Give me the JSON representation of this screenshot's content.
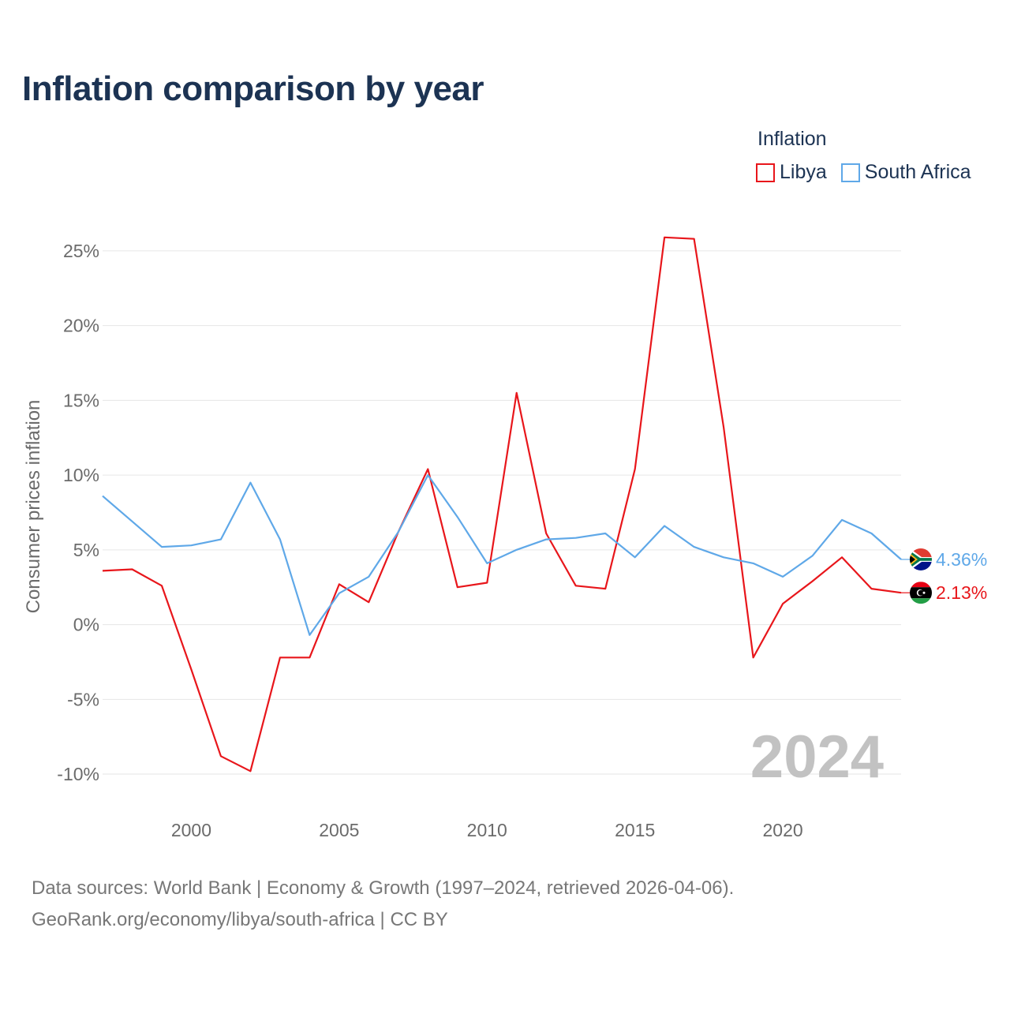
{
  "title": "Inflation comparison by year",
  "legend": {
    "title": "Inflation",
    "items": [
      {
        "label": "Libya",
        "color": "#e8161b"
      },
      {
        "label": "South Africa",
        "color": "#5fa8e8"
      }
    ]
  },
  "footer": {
    "line1": "Data sources: World Bank | Economy & Growth (1997–2024, retrieved 2026-04-06).",
    "line2": "GeoRank.org/economy/libya/south-africa | CC BY"
  },
  "chart_data": {
    "type": "line",
    "title": "Inflation comparison by year",
    "xlabel": "",
    "ylabel": "Consumer prices inflation",
    "xlim": [
      1997,
      2024
    ],
    "ylim": [
      -11,
      27
    ],
    "x_ticks": [
      2000,
      2005,
      2010,
      2015,
      2020
    ],
    "y_ticks": [
      25,
      20,
      15,
      10,
      5,
      0,
      -5,
      -10
    ],
    "y_tick_labels": [
      "25%",
      "20%",
      "15%",
      "10%",
      "5%",
      "0%",
      "-5%",
      "-10%"
    ],
    "year_watermark": "2024",
    "x": [
      1997,
      1998,
      1999,
      2000,
      2001,
      2002,
      2003,
      2004,
      2005,
      2006,
      2007,
      2008,
      2009,
      2010,
      2011,
      2012,
      2013,
      2014,
      2015,
      2016,
      2017,
      2018,
      2019,
      2020,
      2021,
      2022,
      2023,
      2024
    ],
    "series": [
      {
        "name": "Libya",
        "color": "#e8161b",
        "values": [
          3.6,
          3.7,
          2.6,
          -3.0,
          -8.8,
          -9.8,
          -2.2,
          -2.2,
          2.7,
          1.5,
          6.2,
          10.4,
          2.5,
          2.8,
          15.5,
          6.1,
          2.6,
          2.4,
          10.4,
          25.9,
          25.8,
          13.2,
          -2.2,
          1.4,
          2.9,
          4.5,
          2.4,
          2.13
        ],
        "end_label": "2.13%",
        "flag": "libya-flag-icon"
      },
      {
        "name": "South Africa",
        "color": "#5fa8e8",
        "values": [
          8.6,
          6.9,
          5.2,
          5.3,
          5.7,
          9.5,
          5.7,
          -0.7,
          2.1,
          3.2,
          6.2,
          10.0,
          7.2,
          4.1,
          5.0,
          5.7,
          5.8,
          6.1,
          4.5,
          6.6,
          5.2,
          4.5,
          4.1,
          3.2,
          4.6,
          7.0,
          6.1,
          4.36
        ],
        "end_label": "4.36%",
        "flag": "south-africa-flag-icon"
      }
    ]
  }
}
